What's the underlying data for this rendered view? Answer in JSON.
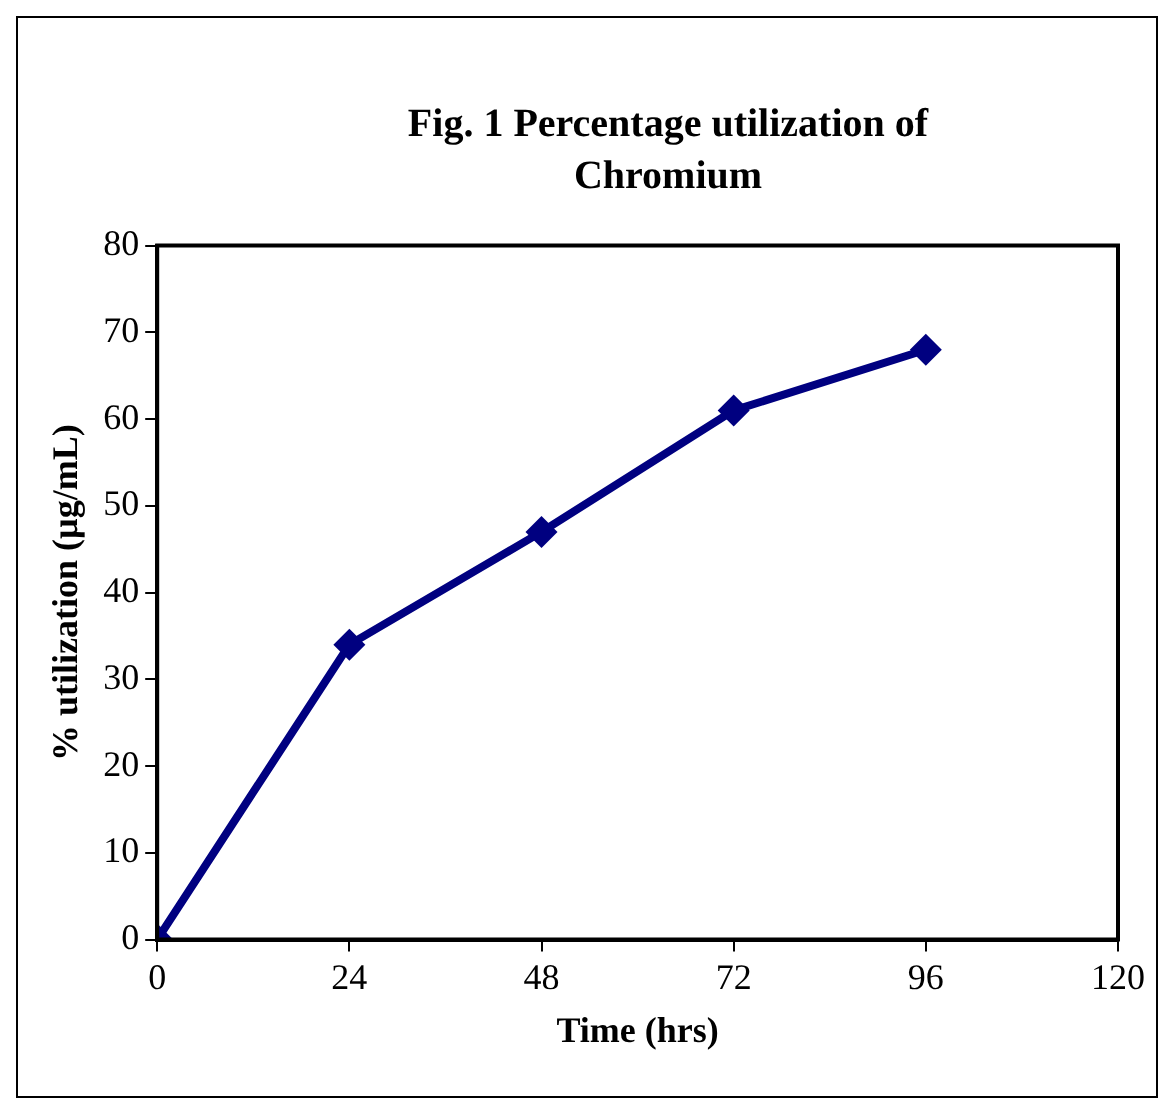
{
  "chart_data": {
    "type": "line",
    "title": "Fig. 1 Percentage utilization of Chromium",
    "xlabel": "Time (hrs)",
    "ylabel": "% utilization (µg/mL)",
    "x": [
      0,
      24,
      48,
      72,
      96
    ],
    "series": [
      {
        "color": "#000080",
        "values": [
          0,
          34,
          47,
          61,
          68
        ]
      }
    ],
    "xlim": [
      0,
      120
    ],
    "xticks": [
      0,
      24,
      48,
      72,
      96,
      120
    ],
    "ylim": [
      0,
      80
    ],
    "yticks": [
      0,
      10,
      20,
      30,
      40,
      50,
      60,
      70,
      80
    ],
    "grid": false,
    "legend": false,
    "marker": "diamond",
    "line_style": "solid"
  }
}
